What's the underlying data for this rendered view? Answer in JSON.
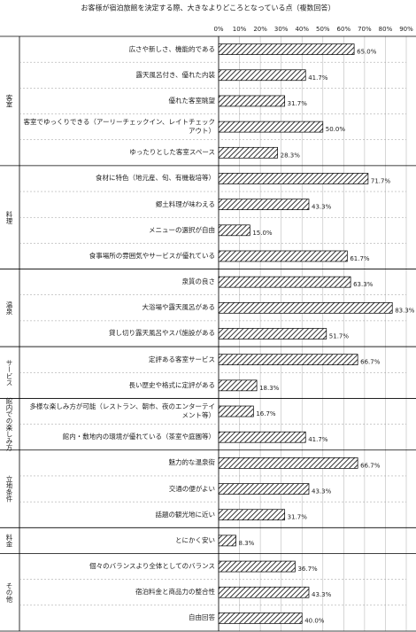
{
  "chart_data": {
    "type": "bar",
    "orientation": "horizontal",
    "title": "お客様が宿泊旅館を決定する際、大きなよりどころとなっている点（複数回答）",
    "xlim": [
      0,
      90
    ],
    "xticks": [
      {
        "value": 0,
        "label": "0%"
      },
      {
        "value": 10,
        "label": "10%"
      },
      {
        "value": 20,
        "label": "20%"
      },
      {
        "value": 30,
        "label": "30%"
      },
      {
        "value": 40,
        "label": "40%"
      },
      {
        "value": 50,
        "label": "50%"
      },
      {
        "value": 60,
        "label": "60%"
      },
      {
        "value": 70,
        "label": "70%"
      },
      {
        "value": 80,
        "label": "80%"
      },
      {
        "value": 90,
        "label": "90%"
      }
    ],
    "grid": true,
    "color": "#333333",
    "groups": [
      {
        "name": "客室",
        "categories": [
          "広さや新しさ、機能的である",
          "露天風呂付き、優れた内装",
          "優れた客室眺望",
          "客室でゆっくりできる（アーリーチェックイン、レイトチェックアウト）",
          "ゆったりとした客室スペース"
        ],
        "values": [
          65.0,
          41.7,
          31.7,
          50.0,
          28.3
        ],
        "value_labels": [
          "65.0%",
          "41.7%",
          "31.7%",
          "50.0%",
          "28.3%"
        ]
      },
      {
        "name": "料理",
        "categories": [
          "食材に特色（地元産、旬、有機栽培等）",
          "郷土料理が味わえる",
          "メニューの選択が自由",
          "食事場所の雰囲気やサービスが優れている"
        ],
        "values": [
          71.7,
          43.3,
          15.0,
          61.7
        ],
        "value_labels": [
          "71.7%",
          "43.3%",
          "15.0%",
          "61.7%"
        ]
      },
      {
        "name": "温泉",
        "categories": [
          "泉質の良さ",
          "大浴場や露天風呂がある",
          "貸し切り露天風呂やスパ施設がある"
        ],
        "values": [
          63.3,
          83.3,
          51.7
        ],
        "value_labels": [
          "63.3%",
          "83.3%",
          "51.7%"
        ]
      },
      {
        "name": "サービス",
        "categories": [
          "定評ある客室サービス",
          "長い歴史や格式に定評がある"
        ],
        "values": [
          66.7,
          18.3
        ],
        "value_labels": [
          "66.7%",
          "18.3%"
        ]
      },
      {
        "name": "館内での楽しみ方",
        "categories": [
          "多様な楽しみ方が可能（レストラン、朝市、夜のエンターテイメント等）",
          "館内・敷地内の環境が優れている（茶室や庭園等）"
        ],
        "values": [
          16.7,
          41.7
        ],
        "value_labels": [
          "16.7%",
          "41.7%"
        ]
      },
      {
        "name": "立地条件",
        "categories": [
          "魅力的な温泉街",
          "交通の便がよい",
          "話題の観光地に近い"
        ],
        "values": [
          66.7,
          43.3,
          31.7
        ],
        "value_labels": [
          "66.7%",
          "43.3%",
          "31.7%"
        ]
      },
      {
        "name": "料金",
        "categories": [
          "とにかく安い"
        ],
        "values": [
          8.3
        ],
        "value_labels": [
          "8.3%"
        ]
      },
      {
        "name": "その他",
        "categories": [
          "個々のバランスより全体としてのバランス",
          "宿泊料金と商品力の整合性",
          "自由回答"
        ],
        "values": [
          36.7,
          43.3,
          40.0
        ],
        "value_labels": [
          "36.7%",
          "43.3%",
          "40.0%"
        ]
      }
    ]
  }
}
